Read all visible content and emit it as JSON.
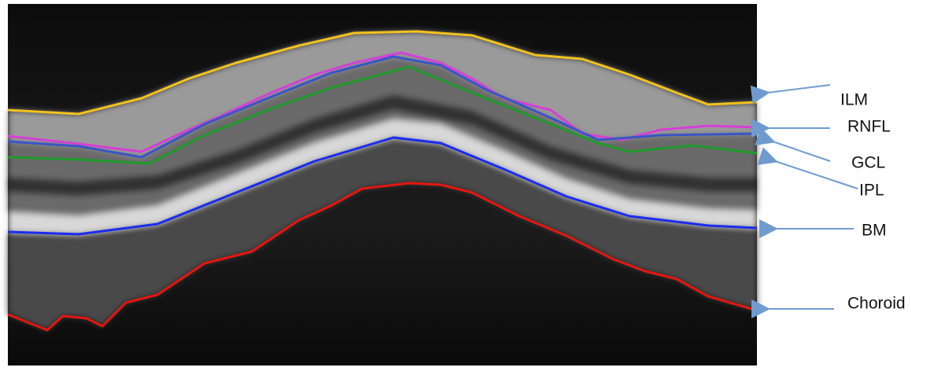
{
  "labels": [
    "ILM",
    "RNFL",
    "GCL",
    "IPL",
    "BM",
    "Choroid"
  ]
}
